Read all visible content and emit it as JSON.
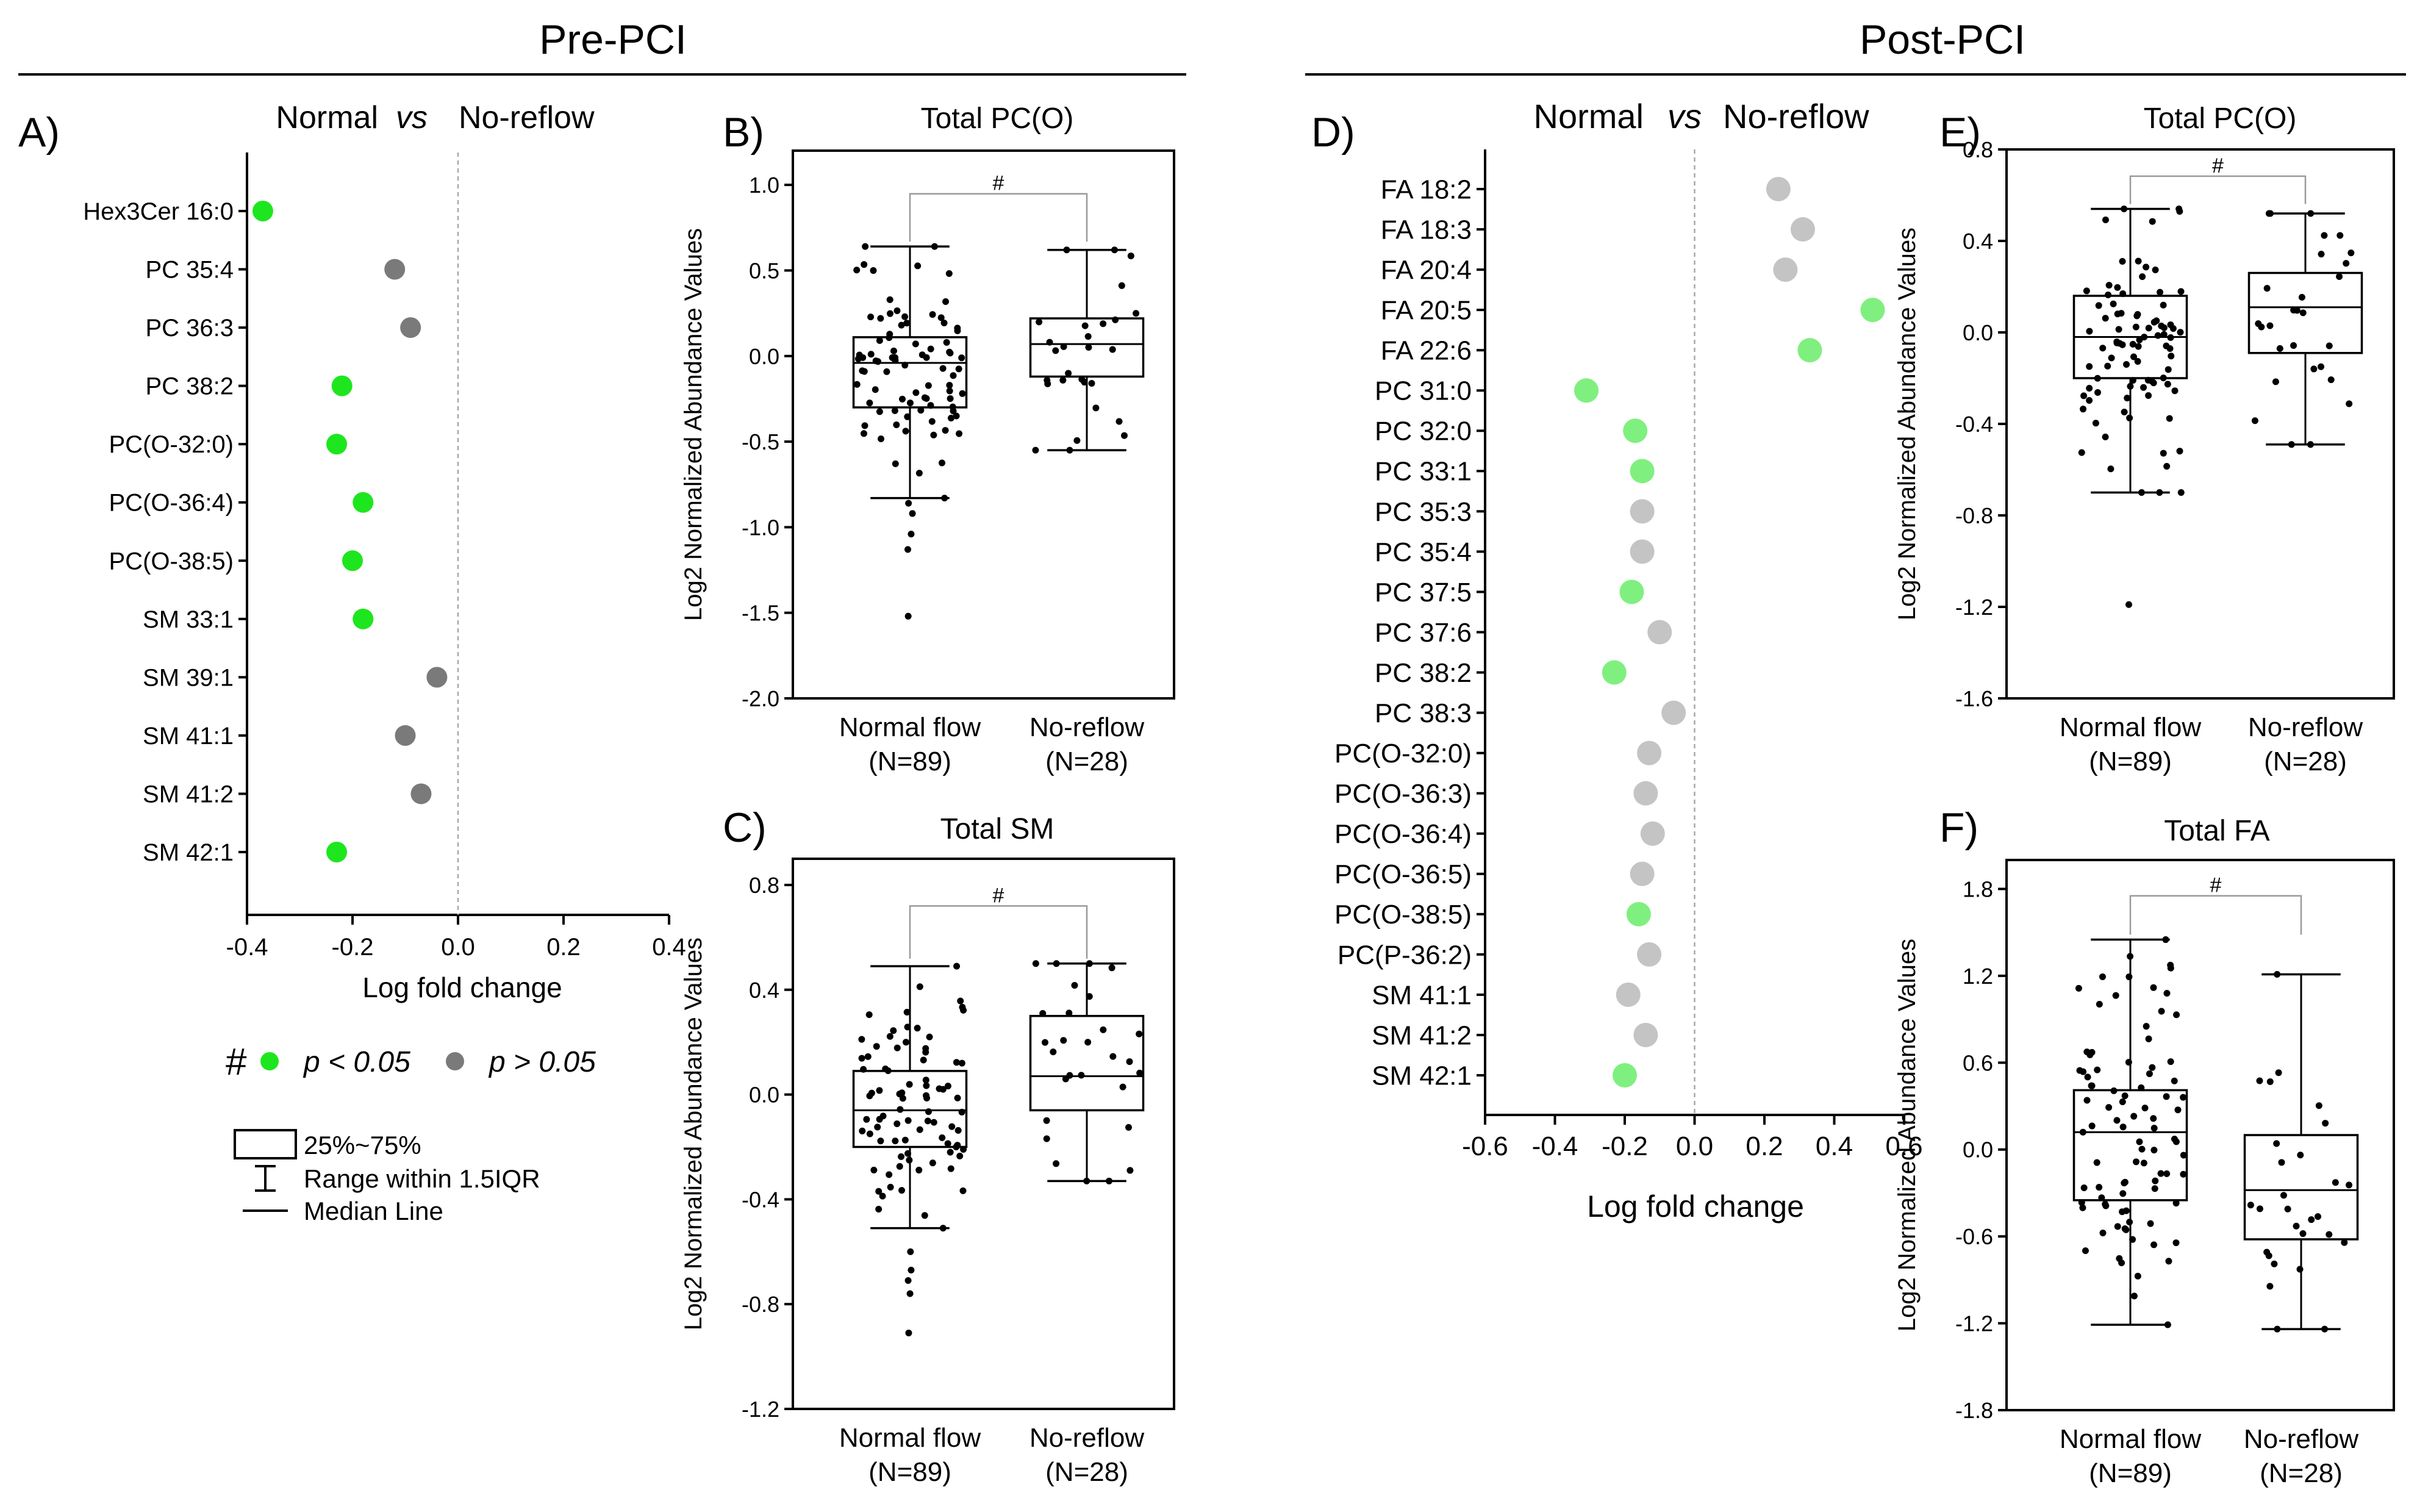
{
  "headers": {
    "pre": "Pre-PCI",
    "post": "Post-PCI"
  },
  "colors": {
    "sig": "#1ee61e",
    "nonsig": "#7a7a7a",
    "sig_post": "#7ff07f",
    "nonsig_post": "#c4c4c4"
  },
  "legend": {
    "hash": "#",
    "sig_label": "p < 0.05",
    "nonsig_label": "p > 0.05",
    "box_label": "25%~75%",
    "whisker_label": "Range within 1.5IQR",
    "median_label": "Median Line"
  },
  "chart_data": [
    {
      "id": "A",
      "panel": "A)",
      "type": "scatter",
      "title_left": "Normal",
      "title_vs": "vs",
      "title_right": "No-reflow",
      "xlabel": "Log fold change",
      "xlim": [
        -0.4,
        0.4
      ],
      "xticks": [
        "-0.4",
        "-0.2",
        "0.0",
        "0.2",
        "0.4"
      ],
      "categories": [
        "Hex3Cer 16:0",
        "PC 35:4",
        "PC 36:3",
        "PC 38:2",
        "PC(O-32:0)",
        "PC(O-36:4)",
        "PC(O-38:5)",
        "SM 33:1",
        "SM 39:1",
        "SM 41:1",
        "SM 41:2",
        "SM 42:1"
      ],
      "values": [
        -0.37,
        -0.12,
        -0.09,
        -0.22,
        -0.23,
        -0.18,
        -0.2,
        -0.18,
        -0.04,
        -0.1,
        -0.07,
        -0.23
      ],
      "significant": [
        true,
        false,
        false,
        true,
        true,
        true,
        true,
        true,
        false,
        false,
        false,
        true
      ]
    },
    {
      "id": "B",
      "panel": "B)",
      "type": "box",
      "title": "Total PC(O)",
      "ylabel": "Log2 Normalized Abundance Values",
      "ylim": [
        -2.0,
        1.2
      ],
      "yticks": [
        1.0,
        0.5,
        0.0,
        -0.5,
        -1.0,
        -1.5,
        -2.0
      ],
      "ytick_labels": [
        "1.0",
        "0.5",
        "0.0",
        "-0.5",
        "-1.0",
        "-1.5",
        "-2.0"
      ],
      "significance": "#",
      "groups": [
        {
          "label": "Normal flow",
          "n_label": "(N=89)",
          "q1": -0.3,
          "median": -0.04,
          "q3": 0.11,
          "whisker_low": -0.83,
          "whisker_high": 0.64,
          "n": 89,
          "outliers": [
            -0.86,
            -0.92,
            -1.04,
            -1.13,
            -1.52
          ]
        },
        {
          "label": "No-reflow",
          "n_label": "(N=28)",
          "q1": -0.12,
          "median": 0.07,
          "q3": 0.22,
          "whisker_low": -0.55,
          "whisker_high": 0.62,
          "n": 28,
          "outliers": []
        }
      ]
    },
    {
      "id": "C",
      "panel": "C)",
      "type": "box",
      "title": "Total SM",
      "ylabel": "Log2 Normalized Abundance Values",
      "ylim": [
        -1.2,
        0.9
      ],
      "yticks": [
        0.8,
        0.4,
        0.0,
        -0.4,
        -0.8,
        -1.2
      ],
      "ytick_labels": [
        "0.8",
        "0.4",
        "0.0",
        "-0.4",
        "-0.8",
        "-1.2"
      ],
      "significance": "#",
      "groups": [
        {
          "label": "Normal flow",
          "n_label": "(N=89)",
          "q1": -0.2,
          "median": -0.06,
          "q3": 0.09,
          "whisker_low": -0.51,
          "whisker_high": 0.49,
          "n": 89,
          "outliers": [
            -0.6,
            -0.67,
            -0.71,
            -0.76,
            -0.91
          ]
        },
        {
          "label": "No-reflow",
          "n_label": "(N=28)",
          "q1": -0.06,
          "median": 0.07,
          "q3": 0.3,
          "whisker_low": -0.33,
          "whisker_high": 0.5,
          "n": 28,
          "outliers": []
        }
      ]
    },
    {
      "id": "D",
      "panel": "D)",
      "type": "scatter",
      "title_left": "Normal",
      "title_vs": "vs",
      "title_right": "No-reflow",
      "xlabel": "Log fold change",
      "xlim": [
        -0.6,
        0.6
      ],
      "xticks": [
        "-0.6",
        "-0.4",
        "-0.2",
        "0.0",
        "0.2",
        "0.4",
        "0.6"
      ],
      "categories": [
        "FA 18:2",
        "FA 18:3",
        "FA 20:4",
        "FA 20:5",
        "FA 22:6",
        "PC 31:0",
        "PC 32:0",
        "PC 33:1",
        "PC 35:3",
        "PC 35:4",
        "PC 37:5",
        "PC 37:6",
        "PC 38:2",
        "PC 38:3",
        "PC(O-32:0)",
        "PC(O-36:3)",
        "PC(O-36:4)",
        "PC(O-36:5)",
        "PC(O-38:5)",
        "PC(P-36:2)",
        "SM 41:1",
        "SM 41:2",
        "SM 42:1"
      ],
      "values": [
        0.24,
        0.31,
        0.26,
        0.51,
        0.33,
        -0.31,
        -0.17,
        -0.15,
        -0.15,
        -0.15,
        -0.18,
        -0.1,
        -0.23,
        -0.06,
        -0.13,
        -0.14,
        -0.12,
        -0.15,
        -0.16,
        -0.13,
        -0.19,
        -0.14,
        -0.2
      ],
      "significant": [
        false,
        false,
        false,
        true,
        true,
        true,
        true,
        true,
        false,
        false,
        true,
        false,
        true,
        false,
        false,
        false,
        false,
        false,
        true,
        false,
        false,
        false,
        true
      ]
    },
    {
      "id": "E",
      "panel": "E)",
      "type": "box",
      "title": "Total PC(O)",
      "ylabel": "Log2 Normalized Abundance Values",
      "ylim": [
        -1.6,
        0.8
      ],
      "yticks": [
        0.8,
        0.4,
        0.0,
        -0.4,
        -0.8,
        -1.2,
        -1.6
      ],
      "ytick_labels": [
        "0.8",
        "0.4",
        "0.0",
        "-0.4",
        "-0.8",
        "-1.2",
        "-1.6"
      ],
      "significance": "#",
      "groups": [
        {
          "label": "Normal flow",
          "n_label": "(N=89)",
          "q1": -0.2,
          "median": -0.02,
          "q3": 0.16,
          "whisker_low": -0.7,
          "whisker_high": 0.54,
          "n": 89,
          "outliers": [
            -1.19
          ]
        },
        {
          "label": "No-reflow",
          "n_label": "(N=28)",
          "q1": -0.09,
          "median": 0.11,
          "q3": 0.26,
          "whisker_low": -0.49,
          "whisker_high": 0.52,
          "n": 28,
          "outliers": []
        }
      ]
    },
    {
      "id": "F",
      "panel": "F)",
      "type": "box",
      "title": "Total FA",
      "ylabel": "Log2 Normalized Abundance Values",
      "ylim": [
        -1.8,
        2.0
      ],
      "yticks": [
        1.8,
        1.2,
        0.6,
        0.0,
        -0.6,
        -1.2,
        -1.8
      ],
      "ytick_labels": [
        "1.8",
        "1.2",
        "0.6",
        "0.0",
        "-0.6",
        "-1.2",
        "-1.8"
      ],
      "significance": "#",
      "groups": [
        {
          "label": "Normal flow",
          "n_label": "(N=89)",
          "q1": -0.35,
          "median": 0.12,
          "q3": 0.41,
          "whisker_low": -1.21,
          "whisker_high": 1.45,
          "n": 89,
          "outliers": []
        },
        {
          "label": "No-reflow",
          "n_label": "(N=28)",
          "q1": -0.62,
          "median": -0.28,
          "q3": 0.1,
          "whisker_low": -1.24,
          "whisker_high": 1.21,
          "n": 28,
          "outliers": []
        }
      ]
    }
  ]
}
